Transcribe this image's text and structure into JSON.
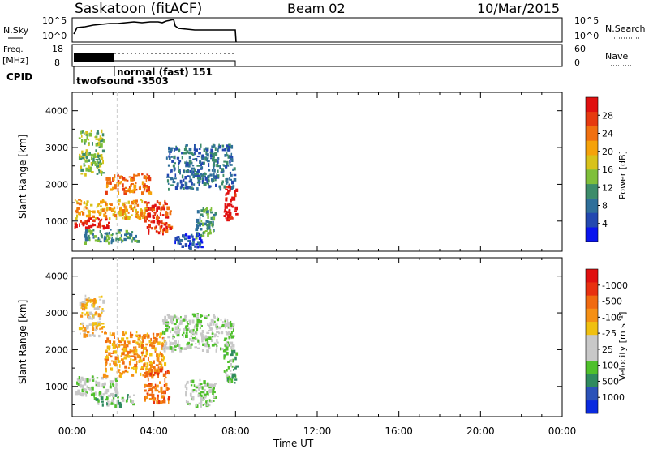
{
  "header": {
    "site": "Saskatoon (fitACF)",
    "beam": "Beam 02",
    "date": "10/Mar/2015"
  },
  "status_panels": {
    "nsky_label": "N.Sky",
    "nsky_ticks": [
      "10^5",
      "10^0"
    ],
    "nsearch_label": "N.Search",
    "freq_label": "Freq.",
    "freq_unit": "[MHz]",
    "freq_ticks": [
      "18",
      "8"
    ],
    "nave_label": "Nave",
    "nave_ticks": [
      "60",
      "0"
    ],
    "cpid_label": "CPID",
    "cpid_entries": [
      "twofsound -3503",
      "normal (fast) 151"
    ]
  },
  "chart_data": [
    {
      "type": "heatmap",
      "parameter": "Power",
      "ylabel": "Slant Range [km]",
      "ylim": [
        180,
        4500
      ],
      "yticks": [
        1000,
        2000,
        3000,
        4000
      ],
      "xlim_hours": [
        0,
        24
      ],
      "colorbar_label": "Power [dB]",
      "colorbar_ticks": [
        "4",
        "8",
        "12",
        "16",
        "20",
        "24",
        "28"
      ],
      "colorbar_colors": [
        "#0a14ee",
        "#2348b0",
        "#2f6f9a",
        "#3d8c6a",
        "#7fbf3a",
        "#d8c21a",
        "#f5a20a",
        "#f07010",
        "#e63a10",
        "#e01010"
      ],
      "data_extent_hours": [
        0,
        8
      ],
      "regions": [
        {
          "t0": 0.1,
          "t1": 1.8,
          "r0": 850,
          "r1": 1150,
          "level": 9
        },
        {
          "t0": 0.1,
          "t1": 3.6,
          "r0": 1100,
          "r1": 1600,
          "level": 6
        },
        {
          "t0": 1.6,
          "t1": 3.8,
          "r0": 1800,
          "r1": 2300,
          "level": 7
        },
        {
          "t0": 3.5,
          "t1": 4.8,
          "r0": 700,
          "r1": 1600,
          "level": 8
        },
        {
          "t0": 0.3,
          "t1": 1.5,
          "r0": 2300,
          "r1": 3500,
          "level": 4
        },
        {
          "t0": 4.6,
          "t1": 7.9,
          "r0": 1900,
          "r1": 3100,
          "level": 2
        },
        {
          "t0": 6.0,
          "t1": 7.0,
          "r0": 600,
          "r1": 1400,
          "level": 3
        },
        {
          "t0": 7.4,
          "t1": 8.0,
          "r0": 1100,
          "r1": 2000,
          "level": 9
        },
        {
          "t0": 5.0,
          "t1": 6.5,
          "r0": 300,
          "r1": 700,
          "level": 1
        },
        {
          "t0": 0.5,
          "t1": 3.2,
          "r0": 450,
          "r1": 800,
          "level": 3
        }
      ]
    },
    {
      "type": "heatmap",
      "parameter": "Velocity",
      "ylabel": "Slant Range [km]",
      "ylim": [
        180,
        4500
      ],
      "yticks": [
        1000,
        2000,
        3000,
        4000
      ],
      "xlim_hours": [
        0,
        24
      ],
      "xticks": [
        "00:00",
        "04:00",
        "08:00",
        "12:00",
        "16:00",
        "20:00",
        "00:00"
      ],
      "xlabel": "Time UT",
      "colorbar_label": "Velocity [m s⁻¹]",
      "colorbar_ticks": [
        "1000",
        "500",
        "100",
        "25",
        "-25",
        "-100",
        "-500",
        "-1000"
      ],
      "colorbar_colors": [
        "#0a2adf",
        "#2b52b8",
        "#2f8a5f",
        "#4fc02b",
        "#c8c8c8",
        "#c8c8c8",
        "#f0c010",
        "#f59015",
        "#f06a10",
        "#e83010",
        "#e01010"
      ],
      "data_extent_hours": [
        0,
        8
      ],
      "regions": [
        {
          "t0": 0.1,
          "t1": 2.2,
          "r0": 800,
          "r1": 1300,
          "level": 4
        },
        {
          "t0": 1.5,
          "t1": 4.5,
          "r0": 1300,
          "r1": 2500,
          "level": 7
        },
        {
          "t0": 3.5,
          "t1": 4.7,
          "r0": 600,
          "r1": 1500,
          "level": 8
        },
        {
          "t0": 4.4,
          "t1": 7.9,
          "r0": 2000,
          "r1": 3000,
          "level": 4
        },
        {
          "t0": 0.3,
          "t1": 1.5,
          "r0": 2400,
          "r1": 3500,
          "level": 6
        },
        {
          "t0": 7.4,
          "t1": 8.0,
          "r0": 1100,
          "r1": 2000,
          "level": 3
        },
        {
          "t0": 5.5,
          "t1": 7.0,
          "r0": 500,
          "r1": 1200,
          "level": 4
        },
        {
          "t0": 1.0,
          "t1": 3.0,
          "r0": 500,
          "r1": 800,
          "level": 3
        }
      ]
    }
  ]
}
